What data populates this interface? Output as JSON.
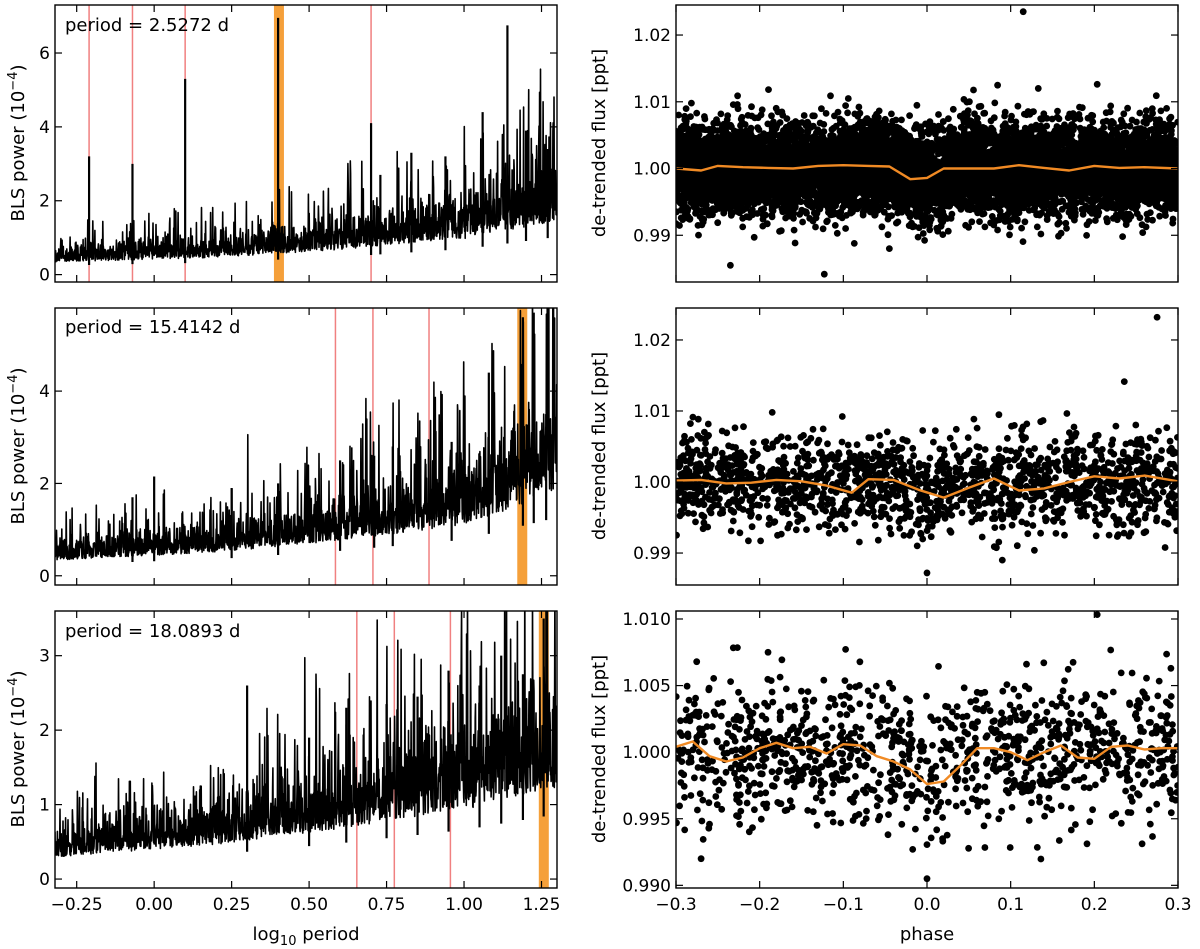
{
  "chart_data": [
    {
      "type": "line",
      "panel": "bls-periodogram-1",
      "annotation": "period = 2.5272 d",
      "xlabel": "",
      "ylabel": "BLS power (10",
      "ylabel_exp": "−4",
      "ylabel_close": ")",
      "xlim": [
        -0.32,
        1.3
      ],
      "ylim": [
        -0.2,
        7.3
      ],
      "yticks": [
        0,
        2,
        4,
        6
      ],
      "ytick_labels": [
        "0",
        "2",
        "4",
        "6"
      ],
      "xticks": [
        -0.25,
        0.0,
        0.25,
        0.5,
        0.75,
        1.0,
        1.25
      ],
      "xtick_labels": [],
      "baseline": {
        "x": [
          -0.32,
          0.2,
          0.6,
          1.0,
          1.3
        ],
        "y": [
          0.4,
          0.55,
          0.8,
          1.15,
          1.7
        ]
      },
      "peaks": [
        {
          "x": -0.21,
          "y": 3.2
        },
        {
          "x": -0.07,
          "y": 3.0
        },
        {
          "x": 0.1,
          "y": 5.3
        },
        {
          "x": 0.4,
          "y": 6.95
        },
        {
          "x": 0.7,
          "y": 4.1
        },
        {
          "x": 0.73,
          "y": 2.7
        },
        {
          "x": 0.83,
          "y": 3.3
        },
        {
          "x": 0.94,
          "y": 3.2
        },
        {
          "x": 1.06,
          "y": 4.4
        },
        {
          "x": 1.14,
          "y": 6.75
        },
        {
          "x": 1.2,
          "y": 3.9
        },
        {
          "x": 1.27,
          "y": 3.4
        }
      ],
      "best_period_log10": 0.4027,
      "alias_lines": [
        -0.21,
        -0.07,
        0.1,
        0.7
      ],
      "line_color": "#000000",
      "highlight_color": "#f5a03a",
      "alias_color": "#f08080"
    },
    {
      "type": "line",
      "panel": "bls-periodogram-2",
      "annotation": "period = 15.4142 d",
      "xlabel": "",
      "ylabel": "BLS power (10",
      "ylabel_exp": "−4",
      "ylabel_close": ")",
      "xlim": [
        -0.32,
        1.3
      ],
      "ylim": [
        -0.2,
        5.8
      ],
      "yticks": [
        0,
        2,
        4
      ],
      "ytick_labels": [
        "0",
        "2",
        "4"
      ],
      "xticks": [
        -0.25,
        0.0,
        0.25,
        0.5,
        0.75,
        1.0,
        1.25
      ],
      "xtick_labels": [],
      "baseline": {
        "x": [
          -0.32,
          0.2,
          0.6,
          1.0,
          1.3
        ],
        "y": [
          0.4,
          0.6,
          0.9,
          1.3,
          2.1
        ]
      },
      "peaks": [
        {
          "x": -0.07,
          "y": 1.7
        },
        {
          "x": 0.0,
          "y": 2.15
        },
        {
          "x": 0.25,
          "y": 1.9
        },
        {
          "x": 0.4,
          "y": 2.0
        },
        {
          "x": 0.6,
          "y": 2.5
        },
        {
          "x": 0.71,
          "y": 2.6
        },
        {
          "x": 0.77,
          "y": 2.8
        },
        {
          "x": 0.96,
          "y": 2.9
        },
        {
          "x": 1.08,
          "y": 4.4
        },
        {
          "x": 1.19,
          "y": 5.6
        },
        {
          "x": 1.225,
          "y": 5.7
        },
        {
          "x": 1.265,
          "y": 3.5
        }
      ],
      "best_period_log10": 1.1879,
      "alias_lines": [
        0.585,
        0.706,
        0.887
      ],
      "line_color": "#000000",
      "highlight_color": "#f5a03a",
      "alias_color": "#f08080"
    },
    {
      "type": "line",
      "panel": "bls-periodogram-3",
      "annotation": "period = 18.0893 d",
      "xlabel": "log",
      "xlabel_sub": "10",
      "xlabel_rest": " period",
      "ylabel": "BLS power (10",
      "ylabel_exp": "−4",
      "ylabel_close": ")",
      "xlim": [
        -0.32,
        1.3
      ],
      "ylim": [
        -0.12,
        3.6
      ],
      "yticks": [
        0,
        1,
        2,
        3
      ],
      "ytick_labels": [
        "0",
        "1",
        "2",
        "3"
      ],
      "xticks": [
        -0.25,
        0.0,
        0.25,
        0.5,
        0.75,
        1.0,
        1.25
      ],
      "xtick_labels": [
        "−0.25",
        "0.00",
        "0.25",
        "0.50",
        "0.75",
        "1.00",
        "1.25"
      ],
      "baseline": {
        "x": [
          -0.32,
          0.2,
          0.6,
          1.0,
          1.3
        ],
        "y": [
          0.35,
          0.55,
          0.8,
          1.1,
          1.45
        ]
      },
      "peaks": [
        {
          "x": 0.3,
          "y": 2.6
        },
        {
          "x": 0.5,
          "y": 1.9
        },
        {
          "x": 0.62,
          "y": 2.3
        },
        {
          "x": 0.75,
          "y": 2.35
        },
        {
          "x": 0.85,
          "y": 2.45
        },
        {
          "x": 0.95,
          "y": 2.8
        },
        {
          "x": 1.05,
          "y": 2.6
        },
        {
          "x": 1.12,
          "y": 3.0
        },
        {
          "x": 1.19,
          "y": 2.75
        },
        {
          "x": 1.257,
          "y": 3.5
        }
      ],
      "best_period_log10": 1.2574,
      "alias_lines": [
        0.654,
        0.775,
        0.956
      ],
      "line_color": "#000000",
      "highlight_color": "#f5a03a",
      "alias_color": "#f08080"
    },
    {
      "type": "scatter",
      "panel": "phase-fold-1",
      "xlabel": "",
      "ylabel": "de-trended flux [ppt]",
      "xlim": [
        -0.3,
        0.3
      ],
      "ylim": [
        0.983,
        1.0245
      ],
      "yticks": [
        0.99,
        1.0,
        1.01,
        1.02
      ],
      "ytick_labels": [
        "0.99",
        "1.00",
        "1.01",
        "1.02"
      ],
      "xticks": [
        -0.3,
        -0.2,
        -0.1,
        0.0,
        0.1,
        0.2,
        0.3
      ],
      "xtick_labels": [],
      "n_points": 9000,
      "scatter_center": 1.0,
      "scatter_sigma": 0.0033,
      "marker_radius": 3.4,
      "outliers": [
        {
          "x": 0.115,
          "y": 1.0235
        },
        {
          "x": 0.133,
          "y": 1.012
        },
        {
          "x": -0.235,
          "y": 0.9855
        },
        {
          "x": -0.045,
          "y": 0.988
        }
      ],
      "binned": {
        "x": [
          -0.3,
          -0.27,
          -0.25,
          -0.22,
          -0.19,
          -0.16,
          -0.13,
          -0.1,
          -0.07,
          -0.045,
          -0.02,
          0.0,
          0.02,
          0.05,
          0.08,
          0.11,
          0.14,
          0.17,
          0.2,
          0.23,
          0.26,
          0.3
        ],
        "y": [
          1.0,
          0.9997,
          1.0004,
          1.0002,
          1.0001,
          1.0,
          1.0004,
          1.0005,
          1.0004,
          1.0003,
          0.9984,
          0.9986,
          1.0,
          1.0,
          1.0,
          1.0005,
          1.0001,
          0.9997,
          1.0004,
          1.0001,
          1.0002,
          1.0
        ],
        "color": "#f08a24"
      }
    },
    {
      "type": "scatter",
      "panel": "phase-fold-2",
      "xlabel": "",
      "ylabel": "de-trended flux [ppt]",
      "xlim": [
        -0.3,
        0.3
      ],
      "ylim": [
        0.9855,
        1.0245
      ],
      "yticks": [
        0.99,
        1.0,
        1.01,
        1.02
      ],
      "ytick_labels": [
        "0.99",
        "1.00",
        "1.01",
        "1.02"
      ],
      "xticks": [
        -0.3,
        -0.2,
        -0.1,
        0.0,
        0.1,
        0.2,
        0.3
      ],
      "xtick_labels": [],
      "n_points": 1600,
      "scatter_center": 1.0,
      "scatter_sigma": 0.0033,
      "marker_radius": 3.4,
      "outliers": [
        {
          "x": 0.275,
          "y": 1.0232
        },
        {
          "x": -0.185,
          "y": 1.0098
        },
        {
          "x": 0.0,
          "y": 0.9872
        },
        {
          "x": 0.09,
          "y": 0.989
        }
      ],
      "binned": {
        "x": [
          -0.3,
          -0.27,
          -0.24,
          -0.21,
          -0.18,
          -0.15,
          -0.12,
          -0.09,
          -0.07,
          -0.04,
          -0.01,
          0.02,
          0.05,
          0.08,
          0.11,
          0.14,
          0.17,
          0.2,
          0.23,
          0.26,
          0.3
        ],
        "y": [
          1.0002,
          1.0003,
          0.9998,
          0.9999,
          1.0003,
          1.0001,
          0.9995,
          0.9985,
          1.0004,
          1.0003,
          0.9989,
          0.9978,
          0.9992,
          1.0005,
          0.9988,
          0.9991,
          1.0,
          1.0008,
          1.0005,
          1.0009,
          1.0001
        ],
        "color": "#f08a24"
      }
    },
    {
      "type": "scatter",
      "panel": "phase-fold-3",
      "xlabel": "phase",
      "ylabel": "de-trended flux [ppt]",
      "xlim": [
        -0.3,
        0.3
      ],
      "ylim": [
        0.9898,
        1.0106
      ],
      "yticks": [
        0.99,
        0.995,
        1.0,
        1.005,
        1.01
      ],
      "ytick_labels": [
        "0.990",
        "0.995",
        "1.000",
        "1.005",
        "1.010"
      ],
      "xticks": [
        -0.3,
        -0.2,
        -0.1,
        0.0,
        0.1,
        0.2,
        0.3
      ],
      "xtick_labels": [
        "−0.3",
        "−0.2",
        "−0.1",
        "0.0",
        "0.1",
        "0.2",
        "0.3"
      ],
      "n_points": 1100,
      "scatter_center": 1.0,
      "scatter_sigma": 0.0027,
      "marker_radius": 3.4,
      "outliers": [
        {
          "x": -0.27,
          "y": 0.992
        },
        {
          "x": 0.0,
          "y": 0.9905
        },
        {
          "x": -0.19,
          "y": 1.0075
        }
      ],
      "binned": {
        "x": [
          -0.3,
          -0.28,
          -0.26,
          -0.24,
          -0.22,
          -0.2,
          -0.18,
          -0.16,
          -0.14,
          -0.12,
          -0.1,
          -0.08,
          -0.06,
          -0.04,
          -0.02,
          0.0,
          0.02,
          0.04,
          0.06,
          0.08,
          0.1,
          0.12,
          0.14,
          0.16,
          0.18,
          0.2,
          0.22,
          0.24,
          0.26,
          0.28,
          0.3
        ],
        "y": [
          1.0004,
          1.0008,
          0.9997,
          0.9993,
          0.9996,
          1.0003,
          1.0007,
          1.0003,
          1.0004,
          0.9999,
          1.0006,
          1.0005,
          0.9997,
          0.9993,
          0.9987,
          0.9976,
          0.9978,
          0.999,
          1.0003,
          1.0003,
          1.0,
          0.9994,
          1.0,
          1.0005,
          0.9996,
          0.9995,
          1.0004,
          1.0005,
          1.0002,
          1.0003,
          1.0003
        ],
        "color": "#f08a24"
      }
    }
  ]
}
